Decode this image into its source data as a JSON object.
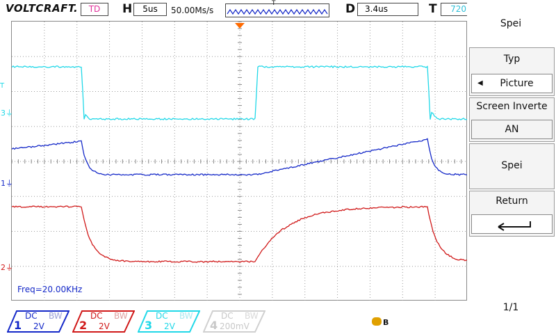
{
  "header": {
    "brand": "VOLTCRAFT.",
    "trigger_mode": "TD",
    "h_label": "H",
    "timebase": "5us",
    "sample_rate": "50.00Ms/s",
    "t_marker": "T",
    "d_label": "D",
    "delay": "3.4us",
    "t_label": "T",
    "t_value": "720"
  },
  "screen": {
    "freq_readout": "Freq=20.00KHz",
    "markers": {
      "ch3": "3",
      "ch1": "1",
      "ch2": "2",
      "trigger": "T"
    }
  },
  "panel": {
    "title": "Spei",
    "typ_label": "Typ",
    "typ_value": "Picture",
    "invert_label": "Screen Inverte",
    "invert_value": "AN",
    "save_label": "Spei",
    "return_label": "Return",
    "page": "1/1"
  },
  "channels": [
    {
      "num": "1",
      "coupling": "DC",
      "bw": "BW",
      "scale": "2V",
      "color": "#1428c8"
    },
    {
      "num": "2",
      "coupling": "DC",
      "bw": "BW",
      "scale": "2V",
      "color": "#d01818"
    },
    {
      "num": "3",
      "coupling": "DC",
      "bw": "BW",
      "scale": "2V",
      "color": "#20d8e8"
    },
    {
      "num": "4",
      "coupling": "DC",
      "bw": "BW",
      "scale": "200mV",
      "color": "#c8c8c8"
    }
  ],
  "colors": {
    "ch1": "#1428c8",
    "ch2": "#d01818",
    "ch3": "#20d8e8",
    "trigger_marker": "#ff6a00",
    "usb_icon": "#e0a000"
  },
  "icons": {
    "return": "return-arrow-icon",
    "left_arrow": "left-triangle-icon",
    "usb": "usb-icon"
  }
}
